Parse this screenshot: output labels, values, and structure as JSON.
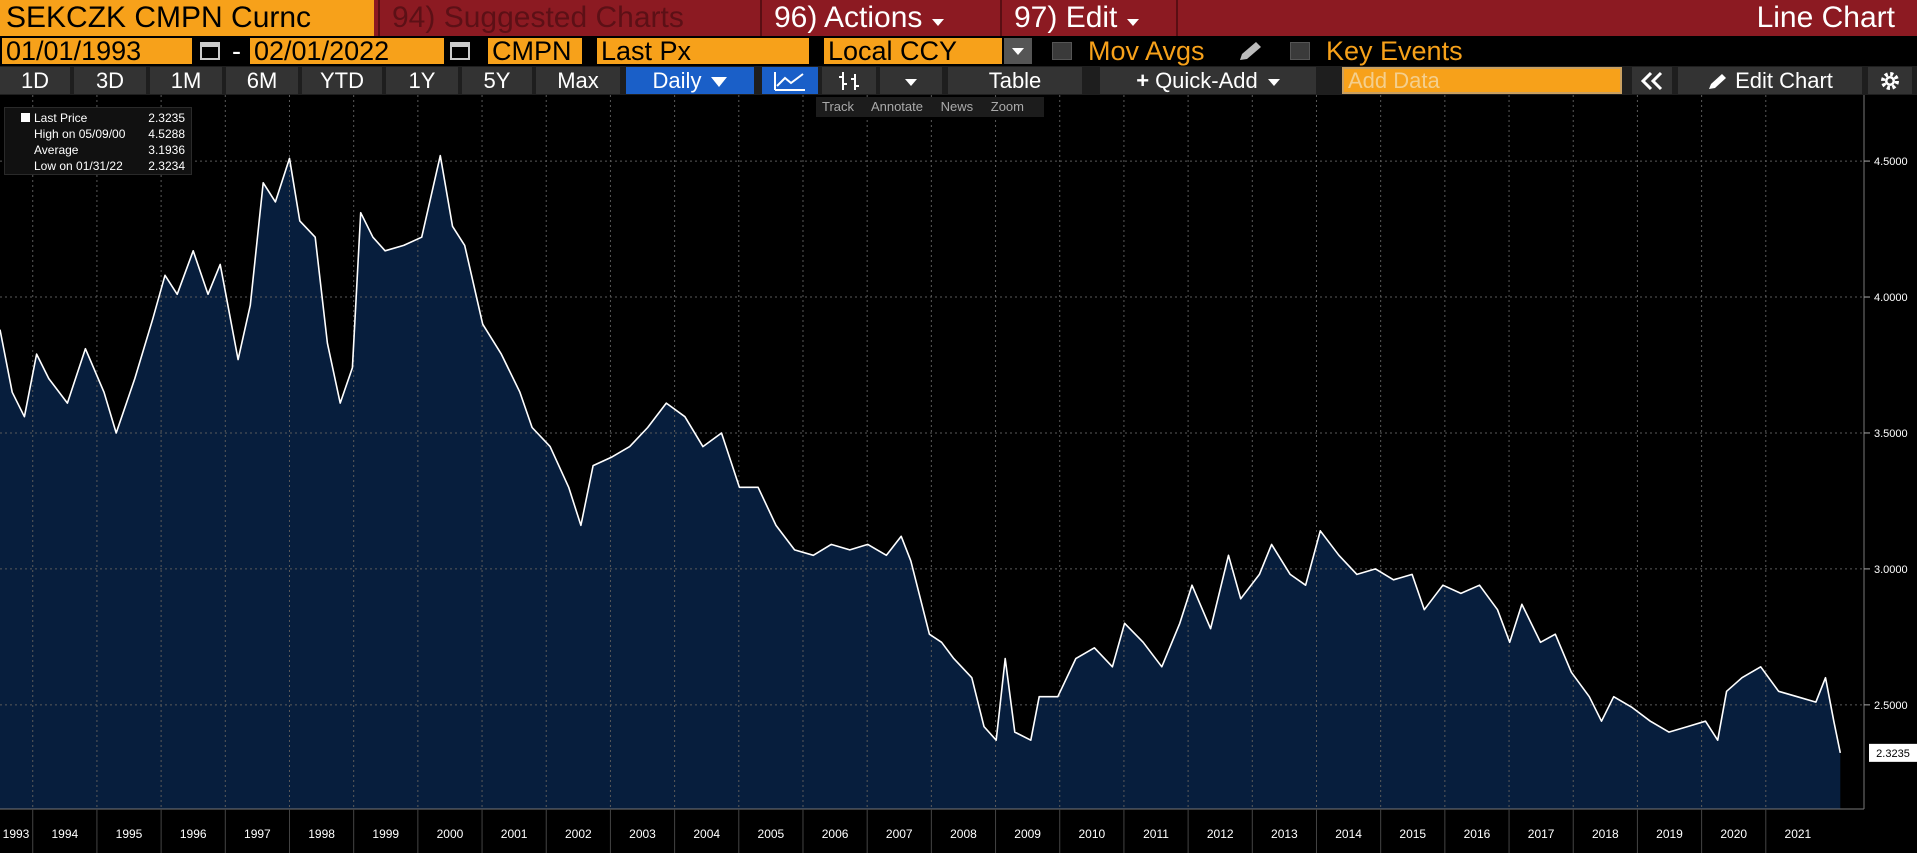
{
  "toolbar": {
    "security": "SEKCZK CMPN Curnc",
    "suggested": "94) Suggested Charts",
    "actions": "96) Actions",
    "edit": "97) Edit",
    "view": "Line Chart"
  },
  "controls": {
    "start_date": "01/01/1993",
    "dash": "-",
    "end_date": "02/01/2022",
    "source": "CMPN",
    "field": "Last Px",
    "currency": "Local CCY",
    "mov_avgs": "Mov Avgs",
    "key_events": "Key Events"
  },
  "periods": [
    "1D",
    "3D",
    "1M",
    "6M",
    "YTD",
    "1Y",
    "5Y",
    "Max"
  ],
  "buttons": {
    "frequency": "Daily",
    "table": "Table",
    "quick_add": "Quick-Add",
    "add_data": "Add Data",
    "edit_chart": "Edit Chart"
  },
  "chart_tools": [
    "Track",
    "Annotate",
    "News",
    "Zoom"
  ],
  "legend": [
    {
      "label": "Last Price",
      "value": "2.3235"
    },
    {
      "label": "High on 05/09/00",
      "value": "4.5288"
    },
    {
      "label": "Average",
      "value": "3.1936"
    },
    {
      "label": "Low on 01/31/22",
      "value": "2.3234"
    }
  ],
  "chart_data": {
    "type": "area",
    "color": "#ffffff",
    "fill": "#071e3d",
    "grid": true,
    "y_axis_side": "right",
    "xlim": [
      1993.49,
      2022.53
    ],
    "ylim": [
      2.117,
      4.743
    ],
    "xticks": [
      1993,
      1994,
      1995,
      1996,
      1997,
      1998,
      1999,
      2000,
      2001,
      2002,
      2003,
      2004,
      2005,
      2006,
      2007,
      2008,
      2009,
      2010,
      2011,
      2012,
      2013,
      2014,
      2015,
      2016,
      2017,
      2018,
      2019,
      2020,
      2021
    ],
    "yticks": [
      {
        "value": 2.5,
        "label": "2.5000"
      },
      {
        "value": 3,
        "label": "3.0000"
      },
      {
        "value": 3.5,
        "label": "3.5000"
      },
      {
        "value": 4,
        "label": "4.0000"
      },
      {
        "value": 4.5,
        "label": "4.5000"
      }
    ],
    "x": [
      1993.49,
      1993.68,
      1993.87,
      1994.06,
      1994.25,
      1994.54,
      1994.82,
      1995.11,
      1995.3,
      1995.59,
      1995.87,
      1996.06,
      1996.25,
      1996.5,
      1996.73,
      1996.92,
      1997.2,
      1997.39,
      1997.59,
      1997.78,
      1998.0,
      1998.16,
      1998.4,
      1998.59,
      1998.79,
      1998.98,
      1999.11,
      1999.3,
      1999.49,
      1999.78,
      2000.06,
      2000.35,
      2000.54,
      2000.73,
      2001.01,
      2001.3,
      2001.59,
      2001.78,
      2002.06,
      2002.35,
      2002.54,
      2002.73,
      2003.01,
      2003.3,
      2003.58,
      2003.87,
      2004.16,
      2004.44,
      2004.73,
      2005.01,
      2005.3,
      2005.58,
      2005.87,
      2006.16,
      2006.44,
      2006.73,
      2007.01,
      2007.3,
      2007.53,
      2007.68,
      2007.97,
      2008.16,
      2008.35,
      2008.63,
      2008.82,
      2009.01,
      2009.15,
      2009.3,
      2009.55,
      2009.68,
      2009.97,
      2010.25,
      2010.54,
      2010.82,
      2011.01,
      2011.3,
      2011.59,
      2011.87,
      2012.06,
      2012.35,
      2012.63,
      2012.82,
      2013.11,
      2013.3,
      2013.59,
      2013.83,
      2014.06,
      2014.35,
      2014.63,
      2014.92,
      2015.2,
      2015.49,
      2015.68,
      2015.97,
      2016.25,
      2016.54,
      2016.82,
      2017.01,
      2017.2,
      2017.49,
      2017.72,
      2017.97,
      2018.25,
      2018.44,
      2018.63,
      2018.92,
      2019.2,
      2019.49,
      2019.78,
      2020.06,
      2020.25,
      2020.39,
      2020.63,
      2020.92,
      2021.2,
      2021.49,
      2021.78,
      2021.93,
      2022.06,
      2022.16
    ],
    "values": [
      3.88,
      3.65,
      3.56,
      3.79,
      3.7,
      3.61,
      3.81,
      3.65,
      3.5,
      3.7,
      3.92,
      4.08,
      4.01,
      4.17,
      4.01,
      4.12,
      3.77,
      3.97,
      4.42,
      4.35,
      4.51,
      4.28,
      4.22,
      3.83,
      3.61,
      3.74,
      4.31,
      4.22,
      4.17,
      4.19,
      4.22,
      4.52,
      4.26,
      4.19,
      3.9,
      3.79,
      3.65,
      3.52,
      3.45,
      3.3,
      3.16,
      3.38,
      3.41,
      3.45,
      3.52,
      3.61,
      3.56,
      3.45,
      3.5,
      3.3,
      3.3,
      3.16,
      3.07,
      3.05,
      3.09,
      3.07,
      3.09,
      3.05,
      3.12,
      3.03,
      2.76,
      2.73,
      2.67,
      2.6,
      2.42,
      2.37,
      2.67,
      2.4,
      2.37,
      2.53,
      2.53,
      2.67,
      2.71,
      2.64,
      2.8,
      2.73,
      2.64,
      2.8,
      2.94,
      2.78,
      3.05,
      2.89,
      2.98,
      3.09,
      2.98,
      2.94,
      3.14,
      3.05,
      2.98,
      3.0,
      2.96,
      2.98,
      2.85,
      2.94,
      2.91,
      2.94,
      2.85,
      2.73,
      2.87,
      2.73,
      2.76,
      2.62,
      2.53,
      2.44,
      2.53,
      2.49,
      2.44,
      2.4,
      2.42,
      2.44,
      2.37,
      2.55,
      2.6,
      2.64,
      2.55,
      2.53,
      2.51,
      2.6,
      2.44,
      2.3235
    ]
  }
}
